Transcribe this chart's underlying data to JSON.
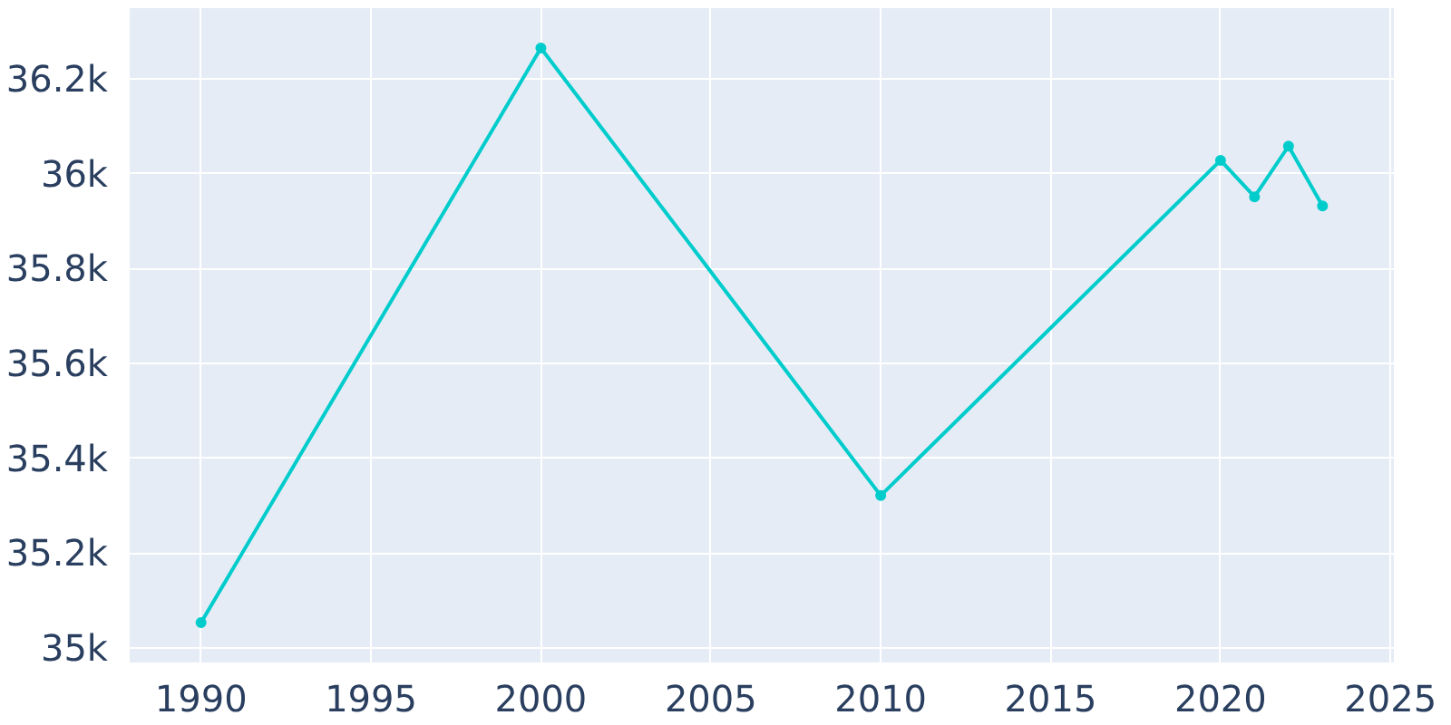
{
  "chart_data": {
    "type": "line",
    "x": [
      1990,
      2000,
      2010,
      2020,
      2021,
      2022,
      2023
    ],
    "series": [
      {
        "color": "#00cccc",
        "values": [
          35053,
          36265,
          35321,
          36028,
          35951,
          36058,
          35932
        ]
      }
    ],
    "xlim": [
      1987.9,
      2025.1
    ],
    "ylim": [
      34969,
      36349
    ],
    "xticks": [
      1990,
      1995,
      2000,
      2005,
      2010,
      2015,
      2020,
      2025
    ],
    "yticks": [
      {
        "value": 35000,
        "label": "35k"
      },
      {
        "value": 35200,
        "label": "35.2k"
      },
      {
        "value": 35400,
        "label": "35.4k"
      },
      {
        "value": 35600,
        "label": "35.6k"
      },
      {
        "value": 35800,
        "label": "35.8k"
      },
      {
        "value": 36000,
        "label": "36k"
      },
      {
        "value": 36200,
        "label": "36.2k"
      }
    ],
    "grid": true,
    "marker": "circle",
    "line_style": "solid"
  }
}
